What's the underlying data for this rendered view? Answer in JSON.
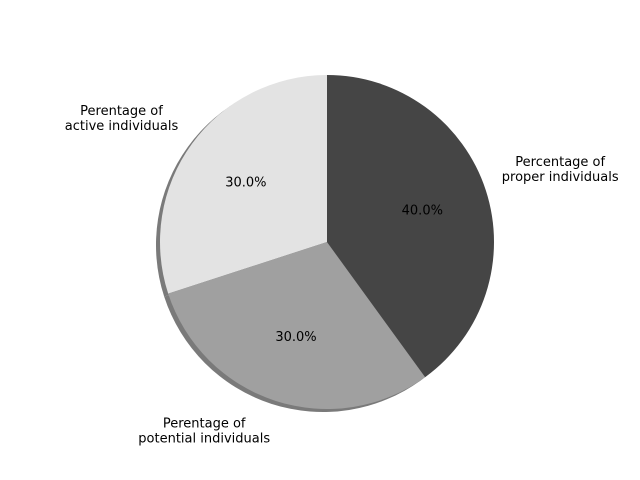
{
  "chart_data": {
    "type": "pie",
    "title": "",
    "start_angle_deg": 90,
    "direction": "counterclockwise",
    "shadow": true,
    "slices": [
      {
        "label_lines": [
          "Perentage of",
          "active individuals"
        ],
        "value": 30.0,
        "pct_label": "30.0%",
        "color": "#e3e3e3"
      },
      {
        "label_lines": [
          "Perentage of",
          "potential individuals"
        ],
        "value": 30.0,
        "pct_label": "30.0%",
        "color": "#a0a0a0"
      },
      {
        "label_lines": [
          "Percentage of",
          "proper individuals"
        ],
        "value": 40.0,
        "pct_label": "40.0%",
        "color": "#454545"
      }
    ]
  }
}
